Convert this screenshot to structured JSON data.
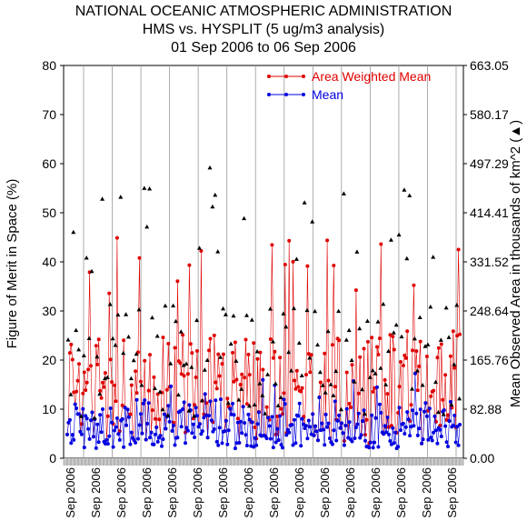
{
  "chart_data": {
    "type": "scatter",
    "title_lines": [
      "NATIONAL OCEANIC ATMOSPHERIC ADMINISTRATION",
      "HMS vs. HYSPLIT (5 ug/m3 analysis)",
      "01 Sep 2006 to 06 Sep 2006"
    ],
    "ylabel_left": "Figure of Merit in Space (%)",
    "ylabel_right": "Mean Observed Area in thousands of km^2 (▲)",
    "ylim_left": [
      0,
      80
    ],
    "ylim_right": [
      0,
      663.05
    ],
    "y_ticks_left": [
      "0",
      "10",
      "20",
      "30",
      "40",
      "50",
      "60",
      "70",
      "80"
    ],
    "y_ticks_right": [
      "0.00",
      "82.88",
      "165.76",
      "248.64",
      "331.52",
      "414.41",
      "497.29",
      "580.17",
      "663.05"
    ],
    "x_tick_label": "Sep 2006",
    "x_tick_count": 16,
    "legend": [
      "Area Weighted Mean",
      "Mean"
    ],
    "legend_position": "top-right",
    "colors": {
      "area_weighted_mean": "#e00000",
      "mean": "#0000e0",
      "area": "#000000",
      "vgrid": "#999999"
    },
    "n_points": 300,
    "vertical_gridlines": 14
  }
}
